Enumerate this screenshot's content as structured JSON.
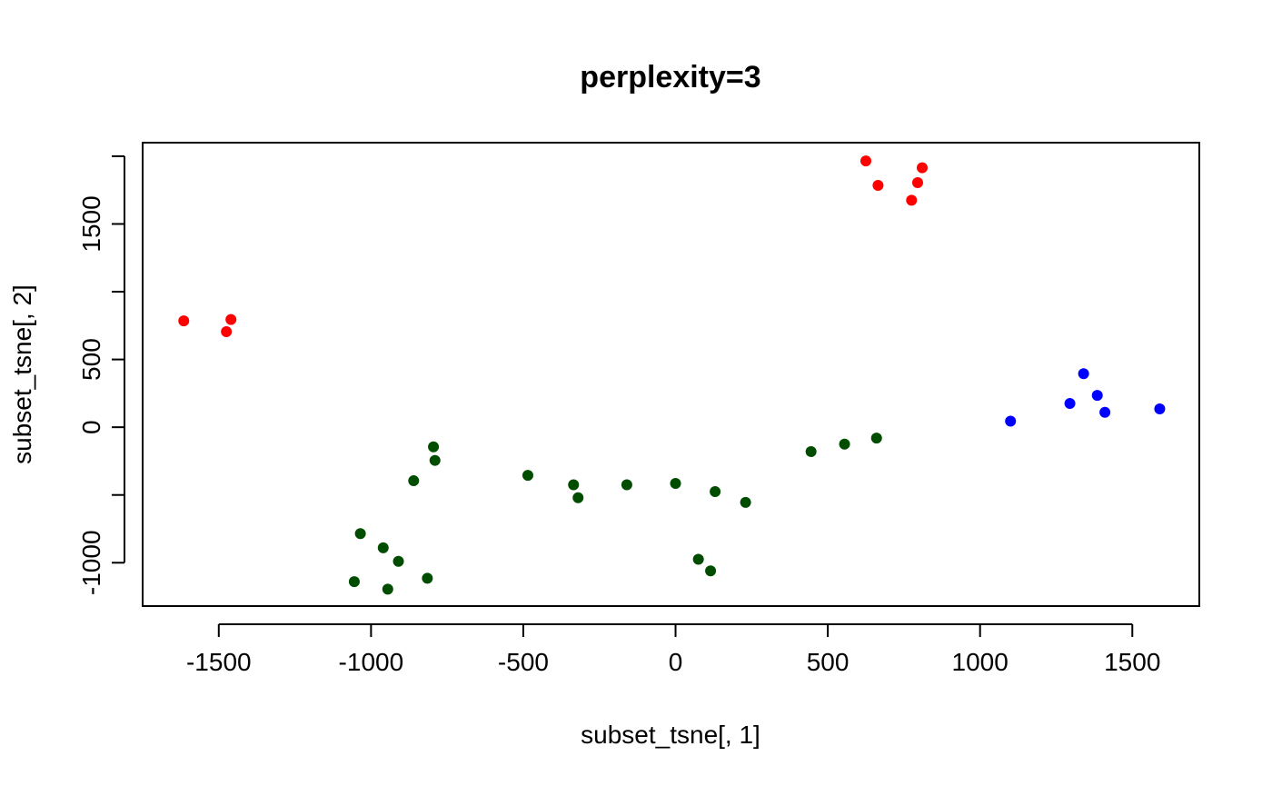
{
  "chart_data": {
    "type": "scatter",
    "title": "perplexity=3",
    "xlabel": "subset_tsne[, 1]",
    "ylabel": "subset_tsne[, 2]",
    "xlim": [
      -1750,
      1720
    ],
    "ylim": [
      -1320,
      2100
    ],
    "x_ticks": [
      -1500,
      -1000,
      -500,
      0,
      500,
      1000,
      1500
    ],
    "x_tick_labels": [
      "-1500",
      "-1000",
      "-500",
      "0",
      "500",
      "1000",
      "1500"
    ],
    "y_ticks": [
      -1000,
      -500,
      0,
      500,
      1000,
      1500,
      2000
    ],
    "y_tick_labels": [
      "-1000",
      "",
      "0",
      "500",
      "",
      "1500",
      ""
    ],
    "grid": false,
    "series": [
      {
        "color": "#ff0000",
        "points": [
          [
            -1615,
            785
          ],
          [
            -1460,
            795
          ],
          [
            -1475,
            705
          ],
          [
            625,
            1965
          ],
          [
            810,
            1915
          ],
          [
            665,
            1785
          ],
          [
            795,
            1805
          ],
          [
            775,
            1675
          ]
        ]
      },
      {
        "color": "#0000ff",
        "points": [
          [
            1340,
            395
          ],
          [
            1385,
            235
          ],
          [
            1295,
            175
          ],
          [
            1410,
            110
          ],
          [
            1590,
            135
          ],
          [
            1100,
            45
          ]
        ]
      },
      {
        "color": "#004d00",
        "points": [
          [
            -795,
            -145
          ],
          [
            -790,
            -245
          ],
          [
            -860,
            -395
          ],
          [
            -485,
            -355
          ],
          [
            -335,
            -425
          ],
          [
            -320,
            -520
          ],
          [
            -160,
            -425
          ],
          [
            0,
            -415
          ],
          [
            130,
            -475
          ],
          [
            230,
            -555
          ],
          [
            445,
            -180
          ],
          [
            555,
            -125
          ],
          [
            660,
            -80
          ],
          [
            -1035,
            -785
          ],
          [
            -960,
            -890
          ],
          [
            -910,
            -990
          ],
          [
            -1055,
            -1140
          ],
          [
            -945,
            -1195
          ],
          [
            -815,
            -1115
          ],
          [
            75,
            -975
          ],
          [
            115,
            -1060
          ]
        ]
      }
    ]
  }
}
